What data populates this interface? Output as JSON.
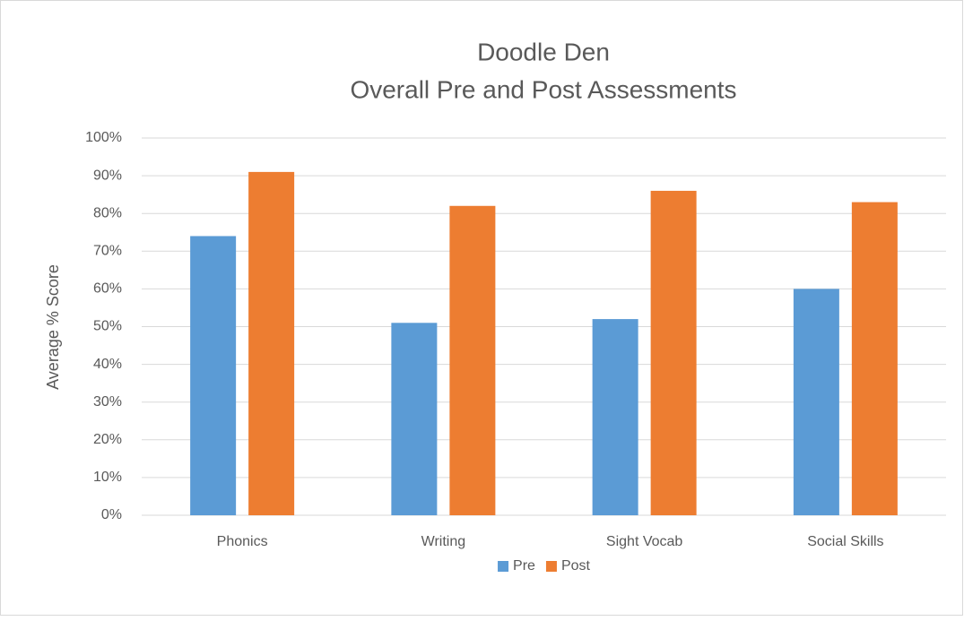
{
  "chart_data": {
    "type": "bar",
    "title": "Doodle Den",
    "subtitle": "Overall Pre and Post Assessments",
    "ylabel": "Average % Score",
    "categories": [
      "Phonics",
      "Writing",
      "Sight Vocab",
      "Social Skills"
    ],
    "series": [
      {
        "name": "Pre",
        "color": "#5b9bd5",
        "values": [
          74,
          51,
          52,
          60
        ]
      },
      {
        "name": "Post",
        "color": "#ed7d31",
        "values": [
          91,
          82,
          86,
          83
        ]
      }
    ],
    "ylim": [
      0,
      100
    ],
    "yticks": [
      {
        "value": 0,
        "label": "0%"
      },
      {
        "value": 10,
        "label": "10%"
      },
      {
        "value": 20,
        "label": "20%"
      },
      {
        "value": 30,
        "label": "30%"
      },
      {
        "value": 40,
        "label": "40%"
      },
      {
        "value": 50,
        "label": "50%"
      },
      {
        "value": 60,
        "label": "60%"
      },
      {
        "value": 70,
        "label": "70%"
      },
      {
        "value": 80,
        "label": "80%"
      },
      {
        "value": 90,
        "label": "90%"
      },
      {
        "value": 100,
        "label": "100%"
      }
    ],
    "grid": true,
    "legend": "bottom"
  }
}
